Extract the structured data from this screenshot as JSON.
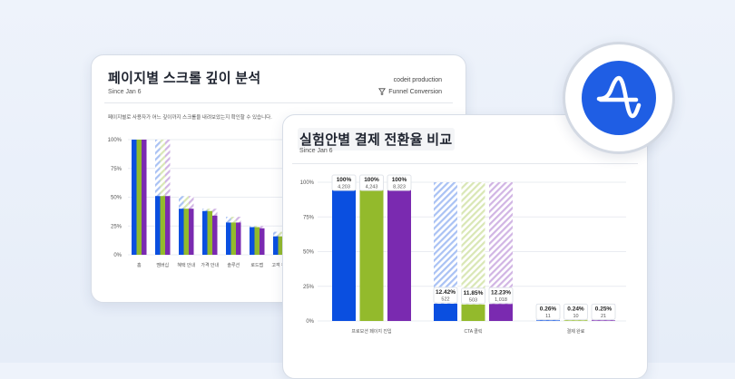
{
  "back_card": {
    "title": "페이지별 스크롤 깊이 분석",
    "since": "Since Jan 6",
    "owner": "codeit production",
    "funnel_label": "Funnel Conversion",
    "description": "페이지별로 사용자가 어느 깊이까지 스크롤을 내려보았는지 확인할 수 있습니다."
  },
  "front_card": {
    "title": "실험안별 결제 전환율 비교",
    "since": "Since Jan 6"
  },
  "logo": {
    "icon": "amplitude-logo-icon",
    "color": "#1f5ee4"
  },
  "colors": {
    "blue": "#0a4fe0",
    "green": "#93ba2c",
    "purple": "#7a2ab0"
  },
  "chart_data": [
    {
      "type": "bar",
      "title": "페이지별 스크롤 깊이 분석",
      "categories": [
        "홈",
        "멤버십",
        "혜택 안내",
        "가격 안내",
        "솔루션",
        "로드맵",
        "고객 후기"
      ],
      "ylim": [
        0,
        100
      ],
      "yticks": [
        "100%",
        "75%",
        "50%",
        "25%",
        "0%"
      ],
      "series": [
        {
          "values": [
            100,
            51,
            40,
            38,
            28,
            24,
            16
          ]
        },
        {
          "values": [
            100,
            51,
            40,
            38,
            28,
            24,
            16
          ]
        },
        {
          "values": [
            100,
            51,
            40,
            34,
            28,
            23,
            16
          ]
        }
      ],
      "ghost_values": [
        100,
        100,
        51,
        40,
        33,
        25,
        20
      ],
      "grid": true
    },
    {
      "type": "bar",
      "title": "실험안별 결제 전환율 비교",
      "categories": [
        "프로모션 페이지 진입",
        "CTA 클릭",
        "결제 완료"
      ],
      "ylim": [
        0,
        100
      ],
      "yticks": [
        "100%",
        "75%",
        "50%",
        "25%",
        "0%"
      ],
      "series": [
        {
          "percent_labels": [
            "100%",
            "12.42%",
            "0.26%"
          ],
          "values": [
            100,
            12.42,
            0.26
          ],
          "counts": [
            "4,203",
            "522",
            "11"
          ]
        },
        {
          "percent_labels": [
            "100%",
            "11.85%",
            "0.24%"
          ],
          "values": [
            100,
            11.85,
            0.24
          ],
          "counts": [
            "4,243",
            "503",
            "10"
          ]
        },
        {
          "percent_labels": [
            "100%",
            "12.23%",
            "0.25%"
          ],
          "values": [
            100,
            12.23,
            0.25
          ],
          "counts": [
            "8,323",
            "1,018",
            "21"
          ]
        }
      ],
      "grid": true
    }
  ]
}
